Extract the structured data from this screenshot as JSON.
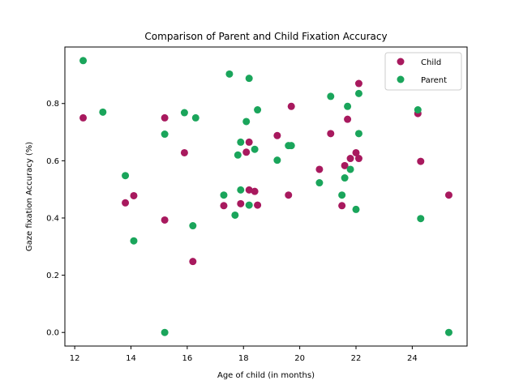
{
  "chart_data": {
    "type": "scatter",
    "title": "Comparison of Parent and Child Fixation Accuracy",
    "xlabel": "Age of child (in months)",
    "ylabel": "Gaze fixation Accuracy (%)",
    "xlim": [
      11.65,
      25.95
    ],
    "ylim": [
      -0.0475,
      0.9975
    ],
    "xticks": [
      12,
      14,
      16,
      18,
      20,
      22,
      24
    ],
    "yticks": [
      0.0,
      0.2,
      0.4,
      0.6,
      0.8
    ],
    "xtick_labels": [
      "12",
      "14",
      "16",
      "18",
      "20",
      "22",
      "24"
    ],
    "ytick_labels": [
      "0.0",
      "0.2",
      "0.4",
      "0.6",
      "0.8"
    ],
    "grid": false,
    "legend_position": "upper right",
    "series": [
      {
        "name": "Child",
        "color": "#a8195e",
        "x": [
          12.3,
          13.8,
          14.1,
          15.2,
          15.2,
          15.9,
          16.2,
          17.3,
          17.9,
          18.1,
          18.2,
          18.2,
          18.4,
          18.5,
          19.2,
          19.6,
          19.7,
          20.7,
          21.1,
          21.5,
          21.6,
          21.7,
          21.8,
          22.0,
          22.1,
          22.1,
          24.2,
          24.3,
          25.3
        ],
        "y": [
          0.75,
          0.453,
          0.478,
          0.75,
          0.393,
          0.628,
          0.248,
          0.443,
          0.45,
          0.63,
          0.665,
          0.498,
          0.493,
          0.445,
          0.688,
          0.48,
          0.79,
          0.57,
          0.695,
          0.443,
          0.583,
          0.745,
          0.608,
          0.628,
          0.87,
          0.608,
          0.765,
          0.598,
          0.48
        ]
      },
      {
        "name": "Parent",
        "color": "#1aa55b",
        "x": [
          12.3,
          13.0,
          13.8,
          14.1,
          15.2,
          15.2,
          15.9,
          16.2,
          16.3,
          17.3,
          17.5,
          17.7,
          17.8,
          17.9,
          17.9,
          18.1,
          18.2,
          18.2,
          18.4,
          18.5,
          19.2,
          19.6,
          19.7,
          20.7,
          21.1,
          21.5,
          21.6,
          21.7,
          21.8,
          22.0,
          22.1,
          22.1,
          24.2,
          24.3,
          25.3
        ],
        "y": [
          0.95,
          0.77,
          0.548,
          0.32,
          0.693,
          0.0,
          0.768,
          0.373,
          0.75,
          0.48,
          0.903,
          0.41,
          0.62,
          0.665,
          0.498,
          0.737,
          0.888,
          0.445,
          0.64,
          0.778,
          0.602,
          0.653,
          0.653,
          0.523,
          0.825,
          0.48,
          0.54,
          0.79,
          0.57,
          0.43,
          0.835,
          0.695,
          0.778,
          0.398,
          0.0
        ]
      }
    ]
  }
}
